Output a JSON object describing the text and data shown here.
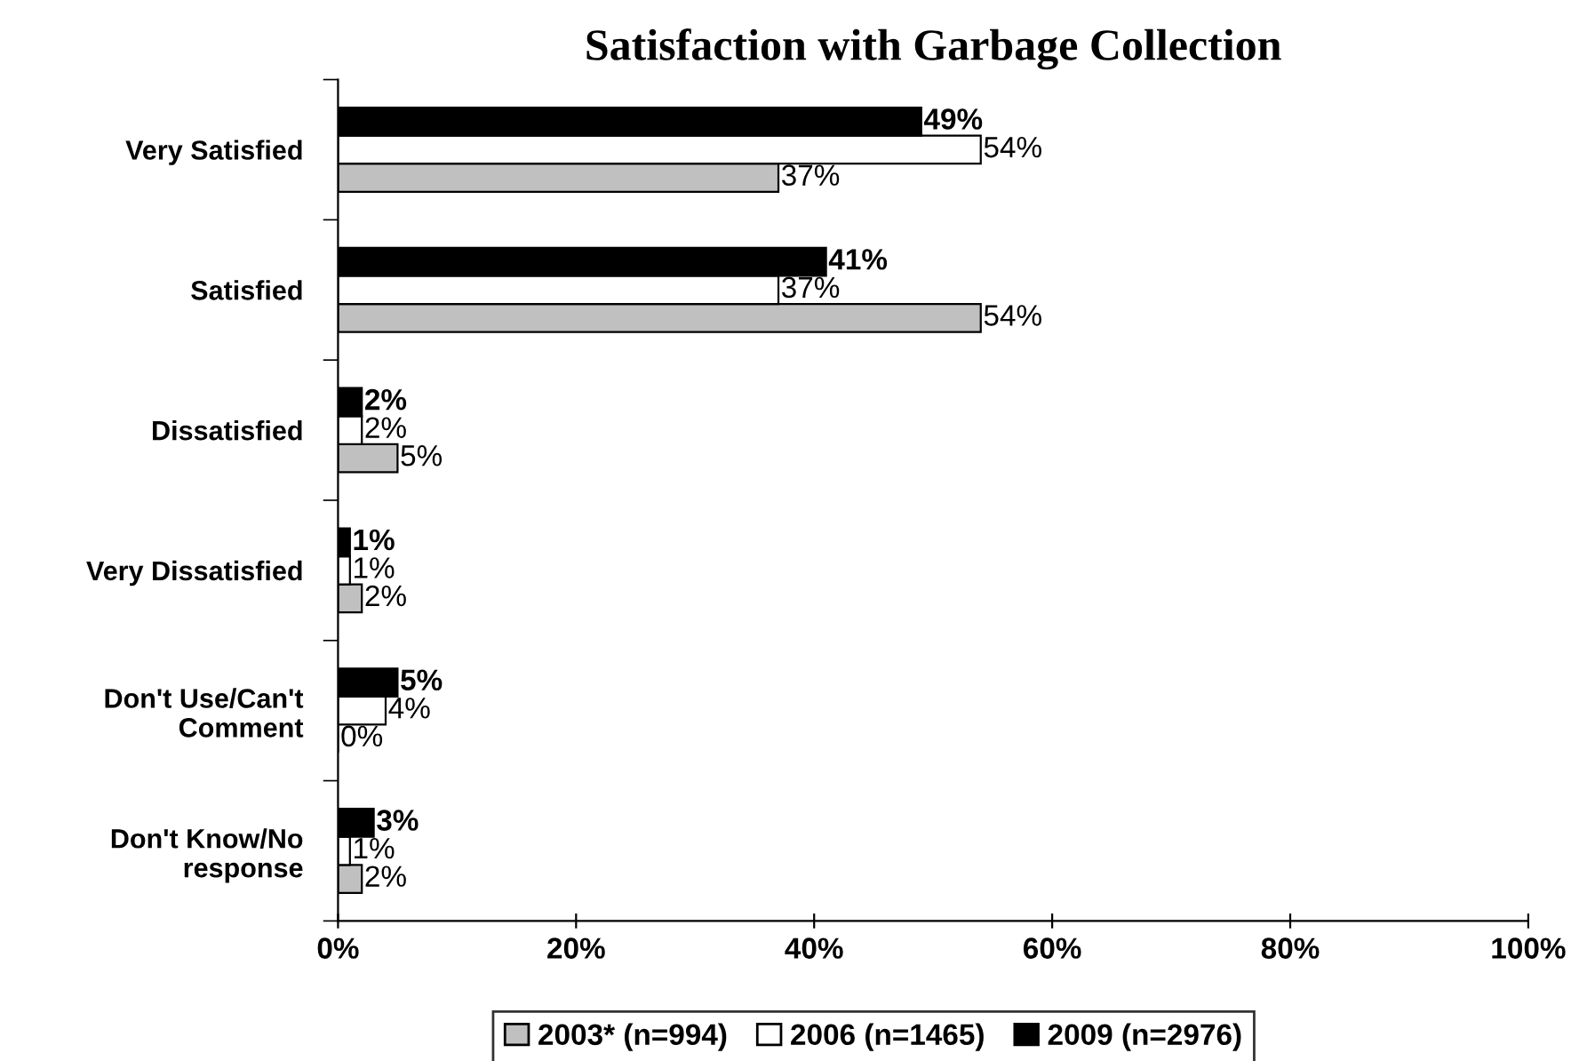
{
  "chart_data": {
    "type": "bar",
    "orientation": "horizontal",
    "title": "Satisfaction with Garbage Collection",
    "categories": [
      "Very Satisfied",
      "Satisfied",
      "Dissatisfied",
      "Very Dissatisfied",
      "Don't Use/Can't Comment",
      "Don't Know/No response"
    ],
    "series": [
      {
        "name": "2003* (n=994)",
        "color": "#c0c0c0",
        "values": [
          37,
          54,
          5,
          2,
          0,
          2
        ],
        "value_labels": [
          "37%",
          "54%",
          "5%",
          "2%",
          "0%",
          "2%"
        ]
      },
      {
        "name": "2006 (n=1465)",
        "color": "#ffffff",
        "values": [
          54,
          37,
          2,
          1,
          4,
          1
        ],
        "value_labels": [
          "54%",
          "37%",
          "2%",
          "1%",
          "4%",
          "1%"
        ]
      },
      {
        "name": "2009 (n=2976)",
        "color": "#000000",
        "values": [
          49,
          41,
          2,
          1,
          5,
          3
        ],
        "value_labels": [
          "49%",
          "41%",
          "2%",
          "1%",
          "5%",
          "3%"
        ]
      }
    ],
    "xlim": [
      0,
      100
    ],
    "xticks": [
      {
        "value": 0,
        "label": "0%"
      },
      {
        "value": 20,
        "label": "20%"
      },
      {
        "value": 40,
        "label": "40%"
      },
      {
        "value": 60,
        "label": "60%"
      },
      {
        "value": 80,
        "label": "80%"
      },
      {
        "value": 100,
        "label": "100%"
      }
    ],
    "grid": false,
    "legend": "bottom"
  }
}
